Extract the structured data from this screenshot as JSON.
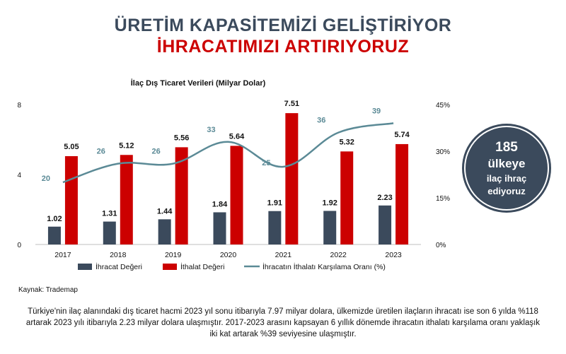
{
  "header": {
    "title_line1": "ÜRETİM KAPASİTEMİZİ GELİŞTİRİYOR",
    "title_line2": "İHRACATIMIZI ARTIRIYORUZ"
  },
  "badge": {
    "line1": "185",
    "line2": "ülkeye",
    "line3": "ilaç ihraç",
    "line4": "ediyoruz"
  },
  "source": "Kaynak: Trademap",
  "footer": "Türkiye'nin ilaç alanındaki dış ticaret hacmi 2023 yıl sonu itibarıyla 7.97 milyar dolara, ülkemizde üretilen ilaçların ihracatı ise son 6 yılda %118 artarak 2023 yılı itibarıyla 2.23 milyar dolara ulaşmıştır. 2017-2023 arasını kapsayan 6 yıllık dönemde ihracatın ithalatı karşılama oranı yaklaşık iki kat artarak %39 seviyesine ulaşmıştır.",
  "colors": {
    "export": "#3b4a5c",
    "import": "#cc0000",
    "ratio": "#5b8a96"
  },
  "chart_data": {
    "type": "bar",
    "title": "İlaç Dış Ticaret Verileri (Milyar Dolar)",
    "categories": [
      "2017",
      "2018",
      "2019",
      "2020",
      "2021",
      "2022",
      "2023"
    ],
    "series": [
      {
        "name": "İhracat Değeri",
        "type": "bar",
        "axis": "left",
        "values": [
          1.02,
          1.31,
          1.44,
          1.84,
          1.91,
          1.92,
          2.23
        ],
        "labels": [
          "1.02",
          "1.31",
          "1.44",
          "1.84",
          "1.91",
          "1.92",
          "2.23"
        ]
      },
      {
        "name": "İthalat Değeri",
        "type": "bar",
        "axis": "left",
        "values": [
          5.05,
          5.12,
          5.56,
          5.64,
          7.51,
          5.32,
          5.74
        ],
        "labels": [
          "5.05",
          "5.12",
          "5.56",
          "5.64",
          "7.51",
          "5.32",
          "5.74"
        ]
      },
      {
        "name": "İhracatın İthalatı Karşılama Oranı (%)",
        "type": "line",
        "axis": "right",
        "values": [
          20,
          26,
          26,
          33,
          25,
          36,
          39
        ],
        "labels": [
          "20",
          "26",
          "26",
          "33",
          "25",
          "36",
          "39"
        ]
      }
    ],
    "y_left": {
      "ylim": [
        0,
        8
      ],
      "ticks": [
        "0",
        "4",
        "8"
      ],
      "tick_values": [
        0,
        4,
        8
      ]
    },
    "y_right": {
      "ylim": [
        0,
        45
      ],
      "ticks": [
        "0%",
        "15%",
        "30%",
        "45%"
      ],
      "tick_values": [
        0,
        15,
        30,
        45
      ]
    },
    "grid": false,
    "legend": "bottom"
  }
}
